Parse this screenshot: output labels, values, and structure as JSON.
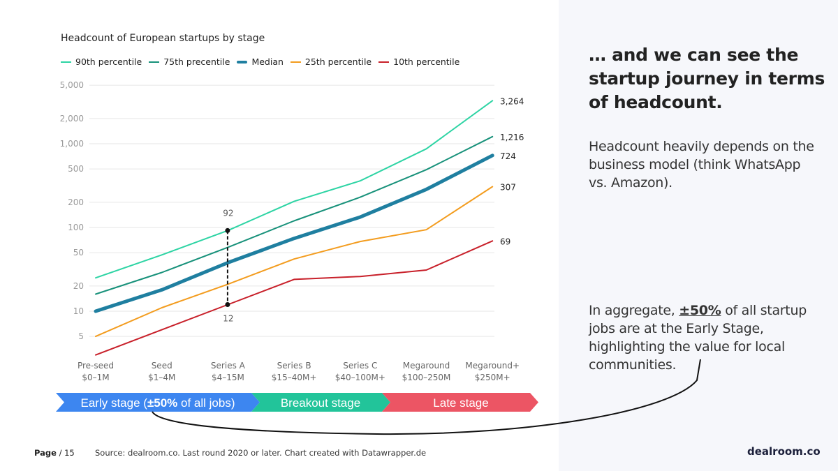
{
  "chart_data": {
    "type": "line",
    "title": "Headcount of European startups by stage",
    "xlabel": "",
    "ylabel": "",
    "yscale": "log",
    "ylim": [
      3,
      5000
    ],
    "yticks": [
      5000,
      2000,
      1000,
      500,
      200,
      100,
      50,
      20,
      10,
      5
    ],
    "ytick_labels": [
      "5,000",
      "2,000",
      "1,000",
      "500",
      "200",
      "100",
      "50",
      "20",
      "10",
      "5"
    ],
    "grid": true,
    "legend_position": "top-left",
    "categories": [
      {
        "name": "Pre-seed",
        "range": "$0–1M"
      },
      {
        "name": "Seed",
        "range": "$1–4M"
      },
      {
        "name": "Series A",
        "range": "$4–15M"
      },
      {
        "name": "Series B",
        "range": "$15–40M+"
      },
      {
        "name": "Series C",
        "range": "$40–100M+"
      },
      {
        "name": "Megaround",
        "range": "$100–250M"
      },
      {
        "name": "Megaround+",
        "range": "$250M+"
      }
    ],
    "series": [
      {
        "name": "90th percentile",
        "color": "#2dd4a4",
        "thick": false,
        "values": [
          25,
          47,
          92,
          205,
          360,
          870,
          3264
        ],
        "end_label": "3,264"
      },
      {
        "name": "75th precentile",
        "color": "#17917a",
        "thick": false,
        "values": [
          16,
          29,
          58,
          120,
          230,
          490,
          1216
        ],
        "end_label": "1,216"
      },
      {
        "name": "Median",
        "color": "#1f7fa0",
        "thick": true,
        "values": [
          10,
          18,
          38,
          74,
          133,
          285,
          724
        ],
        "end_label": "724"
      },
      {
        "name": "25th percentile",
        "color": "#f39c1e",
        "thick": false,
        "values": [
          5,
          11,
          21,
          42,
          68,
          94,
          307
        ],
        "end_label": "307"
      },
      {
        "name": "10th percentile",
        "color": "#c8202a",
        "thick": false,
        "values": [
          3,
          6,
          12,
          24,
          26,
          31,
          69
        ],
        "end_label": "69"
      }
    ],
    "annotations": [
      {
        "category": "Series A",
        "from": 12,
        "to": 92,
        "label_top": "92",
        "label_bottom": "12",
        "style": "dashed"
      }
    ]
  },
  "stages": [
    {
      "label_pre": "Early stage (",
      "label_bold": "±50%",
      "label_post": " of all jobs)",
      "color": "#3d86f0"
    },
    {
      "label": "Breakout stage",
      "color": "#22c49a"
    },
    {
      "label": "Late stage",
      "color": "#ec5564"
    }
  ],
  "headline": "… and we can see the startup journey in terms of headcount.",
  "paragraph1": "Headcount heavily depends on the business model (think WhatsApp vs. Amazon).",
  "paragraph2": {
    "pre": "In aggregate, ",
    "bold": "±50%",
    "post": " of all startup jobs are at the Early Stage, highlighting the value for local communities."
  },
  "footer": {
    "page_bold": "Page",
    "page_rest": " / 15",
    "source": "Source: dealroom.co. Last round 2020 or later. Chart created with Datawrapper.de",
    "brand": "dealroom.co"
  }
}
